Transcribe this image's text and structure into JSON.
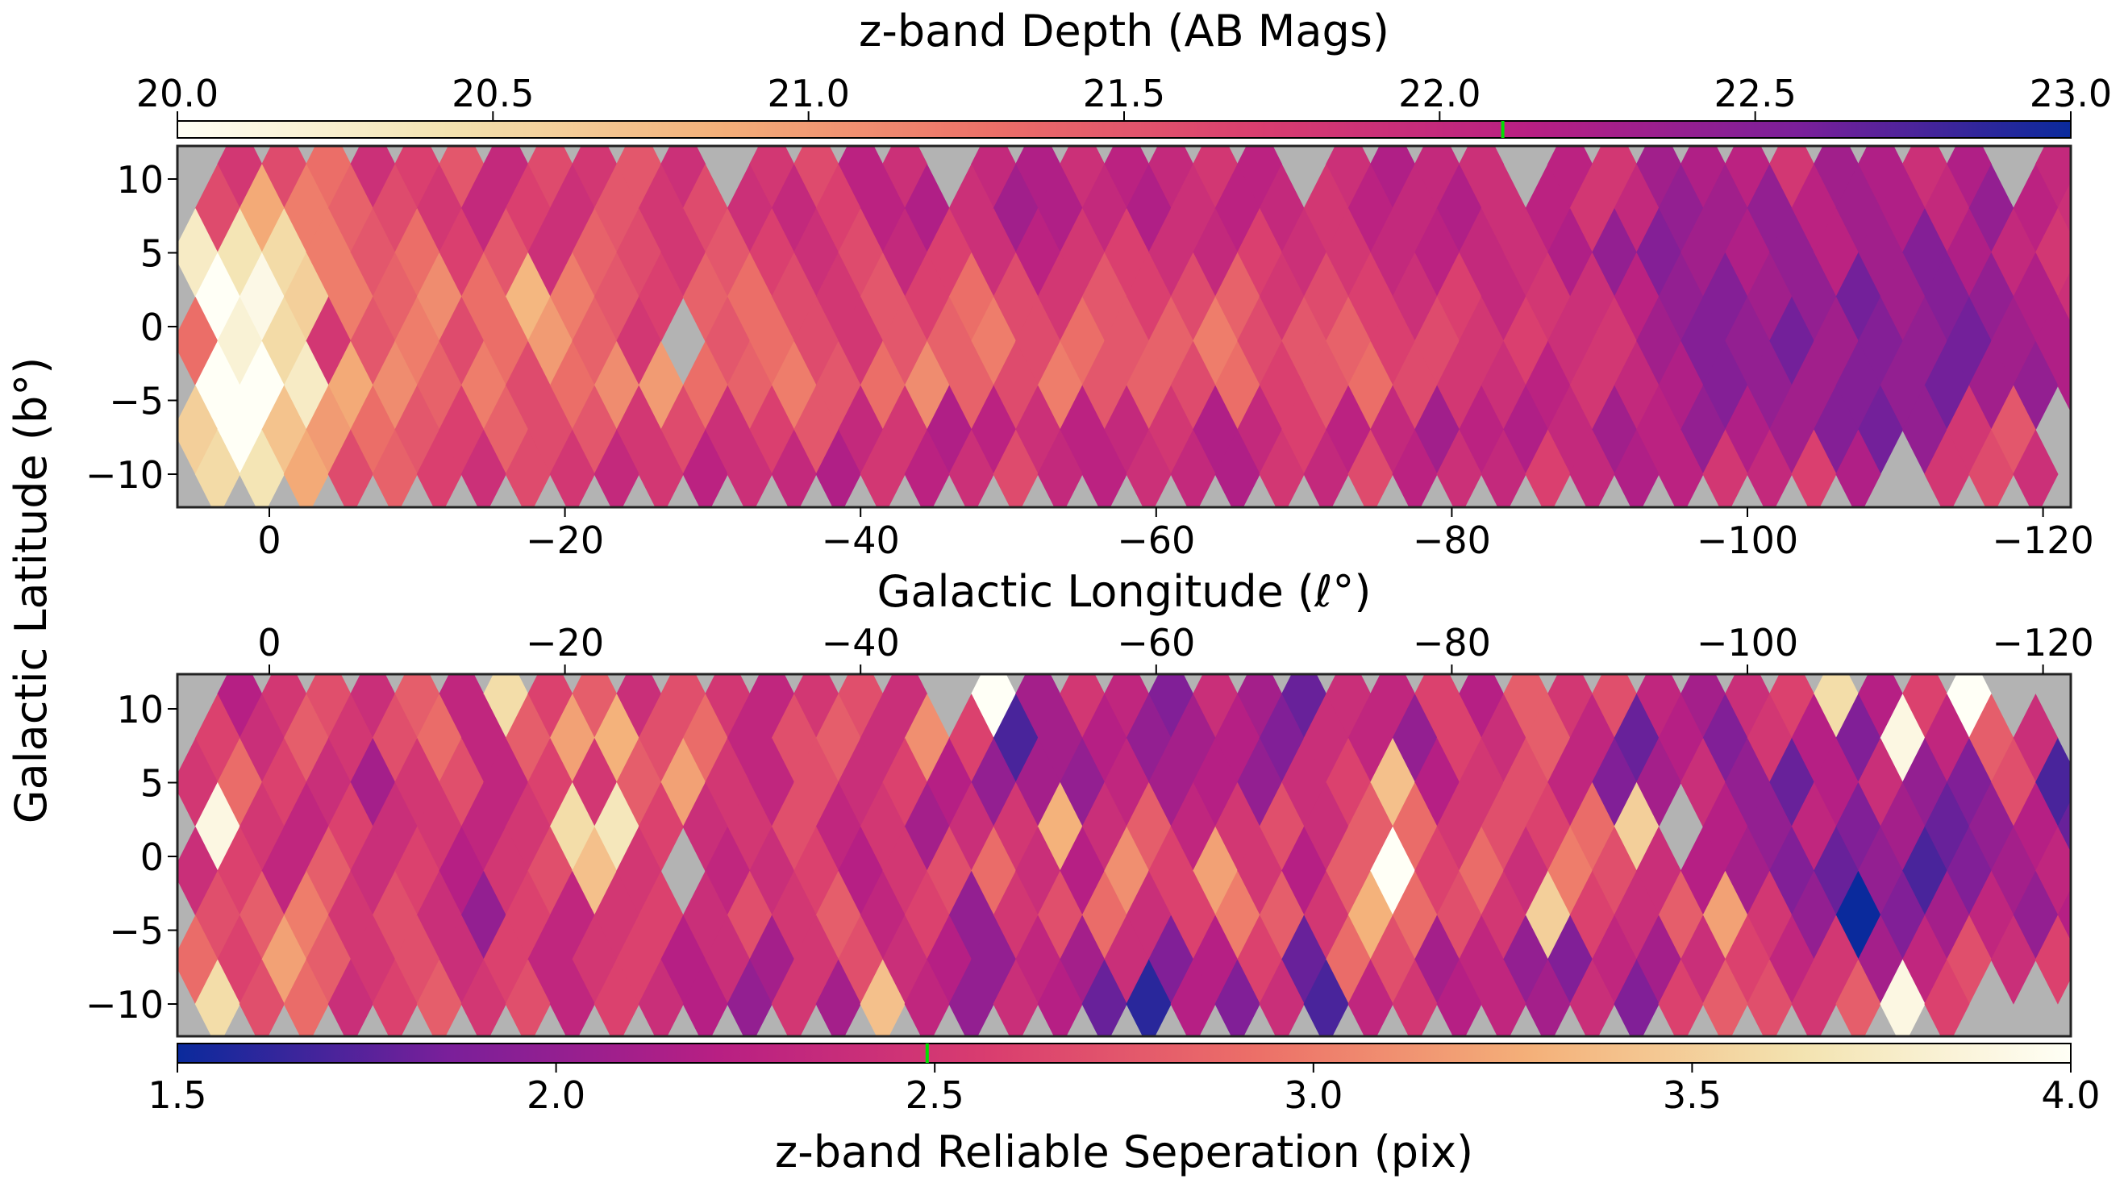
{
  "chart_data": [
    {
      "type": "heatmap",
      "title": "z-band Depth (AB Mags)",
      "colorbar_label": "z-band Depth (AB Mags)",
      "colorbar_range": [
        20.0,
        23.0
      ],
      "colorbar_ticks": [
        "20.0",
        "20.5",
        "21.0",
        "21.5",
        "22.0",
        "22.5",
        "23.0"
      ],
      "colorbar_tick_values": [
        20.0,
        20.5,
        21.0,
        21.5,
        22.0,
        22.5,
        23.0
      ],
      "colormap_reversed": false,
      "marker_value": 22.1,
      "xlabel": "Galactic Longitude (ℓ°)",
      "ylabel": "Galactic Latitude (b°)",
      "xlim": [
        6.2,
        -121.9
      ],
      "ylim": [
        -12.2,
        12.2
      ],
      "x_ticks": [
        0,
        -20,
        -40,
        -60,
        -80,
        -100,
        -120
      ],
      "x_tick_labels": [
        "0",
        "−20",
        "−40",
        "−60",
        "−80",
        "−100",
        "−120"
      ],
      "y_ticks": [
        10,
        5,
        0,
        -5,
        -10
      ],
      "y_tick_labels": [
        "10",
        "5",
        "0",
        "−5",
        "−10"
      ],
      "l_centers": [
        5,
        2,
        -1,
        -4,
        -7,
        -10,
        -13,
        -16,
        -19,
        -22,
        -25,
        -28,
        -31,
        -34,
        -37,
        -40,
        -43,
        -46,
        -49,
        -52,
        -55,
        -58,
        -61,
        -64,
        -67,
        -70,
        -73,
        -76,
        -79,
        -82,
        -85,
        -88,
        -91,
        -94,
        -97,
        -100,
        -103,
        -106,
        -109,
        -112,
        -115,
        -118,
        -121
      ],
      "b_centers": [
        11,
        8,
        5,
        2,
        -1,
        -4,
        -7,
        -10
      ],
      "values": [
        [
          null,
          21.8,
          21.6,
          21.3,
          21.9,
          21.7,
          21.5,
          22.0,
          21.6,
          21.8,
          21.5,
          21.9,
          null,
          21.8,
          21.6,
          22.1,
          21.9,
          null,
          22.0,
          22.2,
          21.9,
          22.1,
          22.0,
          21.8,
          22.1,
          null,
          21.9,
          22.2,
          22.0,
          21.9,
          null,
          22.1,
          21.8,
          22.3,
          22.2,
          22.1,
          21.8,
          22.3,
          22.2,
          21.9,
          22.2,
          null,
          22.0
        ],
        [
          21.6,
          20.9,
          21.2,
          21.4,
          21.6,
          21.8,
          22.0,
          21.7,
          21.9,
          21.5,
          21.8,
          21.6,
          21.9,
          22.0,
          21.7,
          22.1,
          22.2,
          21.9,
          22.3,
          22.2,
          22.0,
          22.2,
          21.9,
          22.1,
          22.0,
          21.8,
          22.1,
          22.0,
          22.2,
          21.9,
          22.1,
          21.8,
          22.0,
          22.4,
          22.3,
          22.4,
          22.1,
          22.3,
          22.2,
          22.0,
          22.4,
          22.1,
          21.9
        ],
        [
          20.3,
          20.4,
          20.5,
          21.2,
          21.5,
          21.3,
          21.7,
          21.5,
          21.9,
          21.4,
          21.6,
          21.8,
          21.5,
          21.7,
          21.9,
          21.6,
          22.0,
          21.7,
          21.9,
          22.1,
          21.8,
          21.7,
          21.9,
          22.0,
          21.7,
          21.9,
          21.8,
          22.0,
          22.1,
          22.0,
          21.9,
          22.2,
          22.4,
          22.5,
          22.3,
          22.2,
          22.4,
          22.1,
          22.3,
          22.5,
          22.2,
          22.0,
          21.8
        ],
        [
          20.0,
          20.1,
          20.6,
          21.2,
          21.4,
          21.1,
          21.3,
          20.8,
          21.2,
          21.5,
          21.7,
          21.4,
          21.3,
          21.6,
          21.8,
          21.5,
          21.7,
          21.3,
          21.6,
          21.8,
          21.5,
          21.7,
          21.6,
          21.4,
          21.8,
          21.6,
          21.7,
          21.9,
          21.7,
          22.0,
          21.8,
          21.9,
          22.1,
          22.4,
          22.5,
          22.3,
          22.4,
          22.6,
          22.3,
          22.5,
          22.4,
          22.2,
          21.9
        ],
        [
          21.3,
          20.2,
          20.5,
          21.8,
          21.5,
          21.2,
          21.6,
          21.3,
          21.0,
          21.4,
          21.8,
          null,
          21.5,
          21.3,
          21.6,
          21.8,
          21.5,
          21.4,
          21.2,
          21.6,
          21.3,
          21.5,
          21.4,
          21.2,
          21.6,
          21.5,
          21.4,
          21.7,
          21.6,
          21.8,
          21.7,
          21.9,
          21.8,
          22.3,
          22.5,
          22.4,
          22.6,
          22.3,
          22.5,
          22.4,
          22.6,
          22.3,
          22.2
        ],
        [
          20.0,
          20.0,
          20.3,
          20.9,
          21.1,
          21.4,
          21.2,
          21.6,
          21.3,
          21.1,
          21.0,
          21.3,
          21.4,
          21.2,
          21.5,
          21.3,
          21.1,
          21.4,
          21.6,
          21.2,
          21.5,
          21.4,
          21.6,
          21.3,
          21.7,
          21.5,
          21.3,
          21.6,
          21.8,
          21.9,
          22.1,
          21.8,
          22.0,
          22.2,
          22.5,
          22.4,
          22.3,
          22.5,
          22.4,
          22.6,
          22.3,
          22.4,
          22.2
        ],
        [
          20.6,
          20.0,
          20.7,
          21.0,
          21.3,
          21.5,
          21.7,
          21.4,
          21.6,
          21.5,
          21.8,
          21.6,
          21.9,
          21.7,
          21.5,
          22.0,
          21.8,
          22.2,
          22.1,
          21.9,
          22.1,
          22.0,
          21.8,
          22.2,
          22.0,
          21.7,
          22.1,
          22.0,
          22.3,
          22.1,
          22.2,
          22.0,
          22.3,
          22.1,
          22.4,
          22.2,
          22.3,
          22.5,
          22.6,
          22.4,
          21.8,
          21.5,
          null
        ],
        [
          20.5,
          20.4,
          20.9,
          21.6,
          21.4,
          21.7,
          21.9,
          21.6,
          21.8,
          22.0,
          21.8,
          22.1,
          21.9,
          22.0,
          22.2,
          21.8,
          22.1,
          21.9,
          21.6,
          22.0,
          22.1,
          21.9,
          22.0,
          22.2,
          21.8,
          22.0,
          21.6,
          22.1,
          21.9,
          22.0,
          21.7,
          22.0,
          22.2,
          22.1,
          21.8,
          22.0,
          21.7,
          22.2,
          null,
          21.8,
          21.6,
          21.9,
          null
        ]
      ]
    },
    {
      "type": "heatmap",
      "colorbar_label": "z-band Reliable Seperation (pix)",
      "colorbar_range": [
        1.5,
        4.0
      ],
      "colorbar_ticks": [
        "1.5",
        "2.0",
        "2.5",
        "3.0",
        "3.5",
        "4.0"
      ],
      "colorbar_tick_values": [
        1.5,
        2.0,
        2.5,
        3.0,
        3.5,
        4.0
      ],
      "colormap_reversed": true,
      "marker_value": 2.49,
      "xlim": [
        6.2,
        -121.9
      ],
      "ylim": [
        -12.2,
        12.2
      ],
      "x_ticks": [
        0,
        -20,
        -40,
        -60,
        -80,
        -100,
        -120
      ],
      "x_tick_labels": [
        "0",
        "−20",
        "−40",
        "−60",
        "−80",
        "−100",
        "−120"
      ],
      "y_ticks": [
        10,
        5,
        0,
        -5,
        -10
      ],
      "y_tick_labels": [
        "10",
        "5",
        "0",
        "−5",
        "−10"
      ],
      "l_centers": [
        5,
        2,
        -1,
        -4,
        -7,
        -10,
        -13,
        -16,
        -19,
        -22,
        -25,
        -28,
        -31,
        -34,
        -37,
        -40,
        -43,
        -46,
        -49,
        -52,
        -55,
        -58,
        -61,
        -64,
        -67,
        -70,
        -73,
        -76,
        -79,
        -82,
        -85,
        -88,
        -91,
        -94,
        -97,
        -100,
        -103,
        -106,
        -109,
        -112,
        -115,
        -118,
        -121
      ],
      "b_centers": [
        11,
        8,
        5,
        2,
        -1,
        -4,
        -7,
        -10
      ],
      "values": [
        [
          null,
          2.2,
          2.5,
          2.7,
          2.4,
          2.8,
          2.3,
          3.6,
          2.6,
          2.8,
          2.4,
          2.7,
          2.5,
          2.3,
          2.5,
          2.7,
          2.4,
          null,
          4.0,
          2.1,
          2.5,
          2.3,
          1.9,
          2.4,
          2.1,
          1.8,
          2.4,
          2.3,
          2.6,
          2.2,
          2.8,
          2.5,
          2.7,
          2.3,
          2.1,
          2.4,
          2.6,
          3.6,
          2.2,
          2.6,
          4.0,
          null,
          null
        ],
        [
          2.6,
          2.4,
          2.8,
          2.5,
          2.7,
          2.9,
          2.3,
          2.8,
          3.2,
          3.3,
          2.7,
          2.9,
          2.3,
          2.7,
          2.8,
          2.4,
          3.1,
          2.6,
          1.7,
          2.1,
          2.2,
          2.0,
          2.1,
          2.2,
          1.9,
          2.4,
          2.3,
          2.0,
          2.6,
          2.4,
          2.8,
          2.3,
          1.8,
          2.2,
          1.9,
          2.5,
          2.2,
          1.9,
          3.9,
          2.3,
          2.8,
          2.4,
          null
        ],
        [
          2.5,
          2.9,
          2.6,
          2.4,
          2.1,
          2.5,
          2.7,
          2.3,
          2.6,
          2.5,
          2.8,
          3.2,
          2.5,
          2.3,
          2.7,
          2.4,
          2.6,
          2.2,
          2.0,
          2.1,
          2.0,
          2.3,
          2.1,
          2.2,
          2.0,
          2.4,
          2.6,
          3.4,
          2.2,
          2.5,
          2.7,
          2.3,
          1.9,
          2.1,
          2.4,
          2.0,
          1.8,
          2.2,
          2.4,
          2.0,
          1.9,
          2.7,
          1.7
        ],
        [
          3.9,
          2.5,
          2.3,
          2.6,
          2.4,
          2.5,
          2.3,
          2.5,
          3.6,
          3.7,
          2.6,
          2.4,
          2.5,
          2.7,
          2.3,
          2.5,
          2.1,
          2.4,
          2.5,
          3.3,
          2.4,
          2.8,
          2.3,
          2.5,
          2.7,
          2.4,
          2.8,
          2.9,
          2.5,
          2.7,
          2.6,
          2.9,
          3.5,
          null,
          2.2,
          2.0,
          2.3,
          1.9,
          2.1,
          1.8,
          2.0,
          2.2,
          1.8
        ],
        [
          2.4,
          2.6,
          2.3,
          2.8,
          2.4,
          2.6,
          2.2,
          2.5,
          2.7,
          3.4,
          2.5,
          null,
          2.3,
          2.4,
          2.6,
          2.2,
          2.5,
          2.7,
          2.9,
          2.4,
          2.2,
          3.1,
          2.6,
          3.2,
          2.5,
          2.2,
          2.8,
          4.0,
          2.6,
          2.9,
          2.4,
          3.0,
          2.7,
          2.4,
          2.2,
          2.1,
          1.9,
          1.8,
          2.0,
          1.7,
          1.9,
          2.1,
          2.3
        ],
        [
          2.7,
          2.8,
          3.0,
          2.5,
          2.7,
          2.4,
          2.0,
          2.6,
          2.3,
          2.5,
          2.6,
          2.4,
          2.7,
          2.5,
          2.8,
          2.3,
          2.6,
          2.0,
          2.5,
          2.7,
          2.9,
          2.4,
          2.6,
          3.0,
          2.8,
          2.5,
          3.3,
          2.9,
          2.7,
          2.5,
          3.5,
          2.6,
          2.4,
          2.8,
          3.2,
          2.5,
          2.0,
          1.5,
          1.9,
          2.1,
          2.3,
          2.0,
          2.2
        ],
        [
          2.9,
          2.6,
          3.2,
          2.8,
          2.5,
          2.7,
          2.4,
          2.6,
          2.3,
          2.5,
          2.6,
          2.2,
          2.4,
          2.1,
          2.5,
          2.7,
          2.4,
          2.2,
          2.0,
          2.3,
          2.1,
          2.4,
          1.9,
          2.2,
          2.6,
          1.8,
          2.9,
          2.7,
          2.1,
          2.3,
          2.0,
          1.9,
          2.3,
          2.1,
          2.4,
          2.6,
          2.3,
          2.5,
          2.1,
          2.3,
          2.7,
          2.4,
          2.6
        ],
        [
          3.6,
          2.7,
          2.9,
          2.4,
          2.6,
          2.8,
          2.5,
          2.7,
          2.3,
          2.6,
          2.4,
          2.2,
          2.0,
          2.5,
          2.1,
          3.4,
          2.3,
          2.0,
          2.4,
          2.2,
          1.8,
          1.6,
          2.2,
          1.9,
          2.4,
          1.7,
          2.3,
          2.5,
          2.2,
          2.3,
          2.1,
          2.4,
          1.9,
          2.6,
          2.8,
          2.7,
          2.5,
          2.8,
          3.9,
          2.6,
          null,
          null,
          null
        ]
      ]
    }
  ],
  "colors": {
    "missing": "#b3b3b3",
    "marker": "#00e000",
    "cmap_stops": [
      "#fffff6",
      "#f3e3b0",
      "#f4b079",
      "#ec7068",
      "#d93d6f",
      "#b81f83",
      "#7a1f9a",
      "#0a2a9c"
    ]
  }
}
